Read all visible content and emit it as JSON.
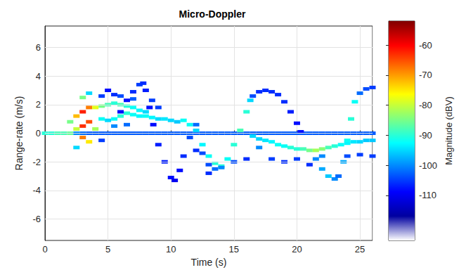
{
  "chart_data": {
    "type": "heatmap",
    "title": "Micro-Doppler",
    "x_label": "Time (s)",
    "y_label": "Range-rate (m/s)",
    "xlim": [
      0,
      26
    ],
    "xticks": [
      0,
      5,
      10,
      15,
      20,
      25
    ],
    "ylim": [
      -7.5,
      7.5
    ],
    "yticks": [
      -6,
      -4,
      -2,
      0,
      2,
      4,
      6
    ],
    "grid": true,
    "colorbar": {
      "label": "Magnitude (dBV)",
      "range": [
        -125,
        -52
      ],
      "ticks": [
        -110,
        -100,
        -90,
        -80,
        -70,
        -60
      ]
    },
    "cells": [
      [
        0,
        0,
        -90
      ],
      [
        0.5,
        0,
        -90
      ],
      [
        1,
        0,
        -88
      ],
      [
        1.5,
        0,
        -88
      ],
      [
        2,
        0,
        -86
      ],
      [
        2.5,
        0,
        -100
      ],
      [
        3,
        0,
        -102
      ],
      [
        3.5,
        0,
        -103
      ],
      [
        4,
        0,
        -103
      ],
      [
        4.5,
        0,
        -103
      ],
      [
        5,
        0,
        -103
      ],
      [
        5.5,
        0,
        -103
      ],
      [
        6,
        0,
        -103
      ],
      [
        6.5,
        0,
        -103
      ],
      [
        7,
        0,
        -103
      ],
      [
        7.5,
        0,
        -103
      ],
      [
        8,
        0,
        -103
      ],
      [
        8.5,
        0,
        -103
      ],
      [
        9,
        0,
        -103
      ],
      [
        9.5,
        0,
        -103
      ],
      [
        10,
        0,
        -103
      ],
      [
        10.5,
        0,
        -103
      ],
      [
        11,
        0,
        -103
      ],
      [
        11.5,
        0,
        -103
      ],
      [
        12,
        0,
        -103
      ],
      [
        12.5,
        0,
        -103
      ],
      [
        13,
        0,
        -103
      ],
      [
        13.5,
        0,
        -103
      ],
      [
        14,
        0,
        -103
      ],
      [
        14.5,
        0,
        -103
      ],
      [
        15,
        0,
        -103
      ],
      [
        15.5,
        0,
        -103
      ],
      [
        16,
        0,
        -103
      ],
      [
        16.5,
        0,
        -103
      ],
      [
        17,
        0,
        -103
      ],
      [
        17.5,
        0,
        -103
      ],
      [
        18,
        0,
        -103
      ],
      [
        18.5,
        0,
        -103
      ],
      [
        19,
        0,
        -103
      ],
      [
        19.5,
        0,
        -103
      ],
      [
        20,
        0,
        -103
      ],
      [
        20.5,
        0,
        -103
      ],
      [
        21,
        0,
        -103
      ],
      [
        21.5,
        0,
        -103
      ],
      [
        22,
        0,
        -103
      ],
      [
        22.5,
        0,
        -103
      ],
      [
        23,
        0,
        -103
      ],
      [
        23.5,
        0,
        -103
      ],
      [
        24,
        0,
        -103
      ],
      [
        24.5,
        0,
        -103
      ],
      [
        25,
        0,
        -103
      ],
      [
        25.5,
        0,
        -103
      ],
      [
        26,
        0,
        -103
      ],
      [
        2,
        0.8,
        -85
      ],
      [
        2.5,
        1.2,
        -72
      ],
      [
        2.5,
        0.3,
        -80
      ],
      [
        3,
        1.5,
        -62
      ],
      [
        3,
        0.5,
        -63
      ],
      [
        3,
        -0.3,
        -68
      ],
      [
        3.5,
        1.8,
        -68
      ],
      [
        3.5,
        0.8,
        -65
      ],
      [
        3.5,
        -0.6,
        -75
      ],
      [
        3,
        2.5,
        -85
      ],
      [
        2.5,
        -1,
        -95
      ],
      [
        4,
        1.8,
        -78
      ],
      [
        4,
        0.3,
        -82
      ],
      [
        3.5,
        2.8,
        -95
      ],
      [
        4.5,
        1.9,
        -85
      ],
      [
        5,
        2,
        -88
      ],
      [
        5.5,
        2.1,
        -90
      ],
      [
        6,
        2,
        -88
      ],
      [
        6.5,
        1.9,
        -90
      ],
      [
        7,
        1.8,
        -92
      ],
      [
        7.5,
        1.6,
        -93
      ],
      [
        8,
        1.5,
        -95
      ],
      [
        4.5,
        1,
        -92
      ],
      [
        5,
        0.9,
        -95
      ],
      [
        5.5,
        1,
        -92
      ],
      [
        6,
        1.2,
        -90
      ],
      [
        6.5,
        1.4,
        -90
      ],
      [
        7,
        1.3,
        -92
      ],
      [
        7.5,
        1.2,
        -93
      ],
      [
        8,
        1.2,
        -92
      ],
      [
        8.5,
        1.1,
        -93
      ],
      [
        9,
        1,
        -95
      ],
      [
        9.5,
        1,
        -94
      ],
      [
        10,
        0.9,
        -95
      ],
      [
        10.5,
        0.8,
        -96
      ],
      [
        11,
        0.9,
        -92
      ],
      [
        11.5,
        0.6,
        -92
      ],
      [
        12,
        0.2,
        -95
      ],
      [
        12.5,
        -0.8,
        -93
      ],
      [
        13,
        -1.6,
        -92
      ],
      [
        13.5,
        -2.1,
        -90
      ],
      [
        14,
        -2.3,
        -90
      ],
      [
        14.5,
        -1.8,
        -92
      ],
      [
        15,
        -0.8,
        -90
      ],
      [
        15.5,
        0.2,
        -88
      ],
      [
        16,
        1.5,
        -90
      ],
      [
        16.3,
        2.3,
        -95
      ],
      [
        6,
        1.5,
        -108
      ],
      [
        6.5,
        2.3,
        -108
      ],
      [
        7,
        2.9,
        -106
      ],
      [
        7.5,
        3.4,
        -105
      ],
      [
        7.8,
        3.5,
        -106
      ],
      [
        8,
        3,
        -107
      ],
      [
        8.3,
        1.8,
        -108
      ],
      [
        8.6,
        0.6,
        -108
      ],
      [
        9,
        -0.8,
        -107
      ],
      [
        9.5,
        -2,
        -107
      ],
      [
        10,
        -3.1,
        -108
      ],
      [
        10.3,
        -3.3,
        -110
      ],
      [
        10.7,
        -2.6,
        -108
      ],
      [
        11,
        -1.6,
        -106
      ],
      [
        11.5,
        -0.3,
        -104
      ],
      [
        12,
        0.6,
        -102
      ],
      [
        12.5,
        -1.4,
        -104
      ],
      [
        13,
        -2.2,
        -104
      ],
      [
        13.5,
        -2.5,
        -102
      ],
      [
        14,
        -2.4,
        -100
      ],
      [
        16.5,
        2.6,
        -104
      ],
      [
        17,
        2.9,
        -106
      ],
      [
        17.5,
        3,
        -106
      ],
      [
        18,
        2.9,
        -106
      ],
      [
        18.5,
        2.7,
        -106
      ],
      [
        19,
        2.2,
        -106
      ],
      [
        19.5,
        1.5,
        -107
      ],
      [
        20,
        0.7,
        -108
      ],
      [
        20.3,
        0.1,
        -108
      ],
      [
        16.5,
        -0.2,
        -95
      ],
      [
        17,
        -0.4,
        -95
      ],
      [
        17.5,
        -0.5,
        -94
      ],
      [
        18,
        -0.6,
        -93
      ],
      [
        18.5,
        -0.8,
        -92
      ],
      [
        19,
        -0.9,
        -92
      ],
      [
        19.5,
        -1,
        -90
      ],
      [
        20,
        -1.1,
        -90
      ],
      [
        20.5,
        -1.1,
        -88
      ],
      [
        21,
        -1.2,
        -85
      ],
      [
        21.5,
        -1.2,
        -82
      ],
      [
        22,
        -1.1,
        -84
      ],
      [
        22.5,
        -1,
        -88
      ],
      [
        23,
        -0.9,
        -90
      ],
      [
        23.5,
        -0.8,
        -92
      ],
      [
        24,
        -0.7,
        -93
      ],
      [
        24.5,
        -0.6,
        -94
      ],
      [
        25,
        -0.6,
        -95
      ],
      [
        25.5,
        -0.5,
        -96
      ],
      [
        26,
        -0.5,
        -96
      ],
      [
        21.5,
        -1.8,
        -100
      ],
      [
        22,
        -2.5,
        -98
      ],
      [
        22.5,
        -3,
        -96
      ],
      [
        23,
        -3.2,
        -100
      ],
      [
        23.3,
        -3,
        -102
      ],
      [
        23.7,
        -2,
        -98
      ],
      [
        24,
        -0.5,
        -92
      ],
      [
        24.3,
        1,
        -90
      ],
      [
        24.6,
        2.2,
        -92
      ],
      [
        25,
        2.8,
        -102
      ],
      [
        25.5,
        3.1,
        -104
      ],
      [
        26,
        3.2,
        -105
      ],
      [
        4.5,
        2.6,
        -105
      ],
      [
        5,
        3,
        -108
      ],
      [
        5.5,
        2.7,
        -106
      ],
      [
        6,
        2.6,
        -104
      ],
      [
        4.5,
        -0.5,
        -105
      ],
      [
        5.5,
        0.5,
        -100
      ],
      [
        6.5,
        0.6,
        -102
      ],
      [
        7,
        2.4,
        -103
      ],
      [
        8.5,
        2.3,
        -105
      ],
      [
        9,
        1.8,
        -105
      ],
      [
        12,
        -1.2,
        -106
      ],
      [
        13,
        -2.8,
        -106
      ],
      [
        15,
        -2,
        -104
      ],
      [
        16,
        -1.8,
        -106
      ],
      [
        17,
        -1,
        -100
      ],
      [
        18,
        -1.8,
        -105
      ],
      [
        19,
        -2,
        -106
      ],
      [
        20,
        -1.8,
        -105
      ],
      [
        21,
        -2.2,
        -106
      ],
      [
        22,
        -1.6,
        -100
      ],
      [
        24,
        -1.6,
        -104
      ],
      [
        25,
        -1.5,
        -105
      ],
      [
        26,
        -1.6,
        -105
      ]
    ]
  }
}
